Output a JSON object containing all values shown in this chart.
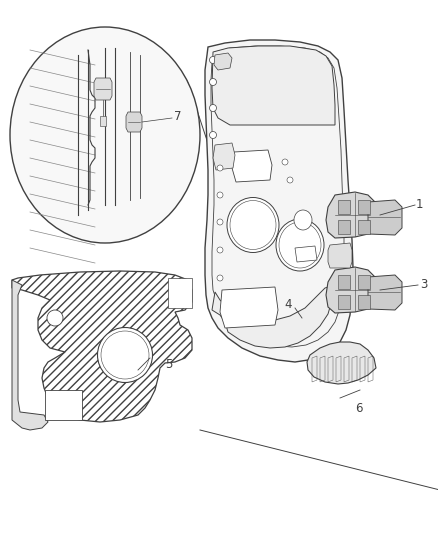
{
  "bg_color": "#ffffff",
  "line_color": "#404040",
  "figure_width": 4.38,
  "figure_height": 5.33,
  "dpi": 100,
  "label_fontsize": 8.5
}
